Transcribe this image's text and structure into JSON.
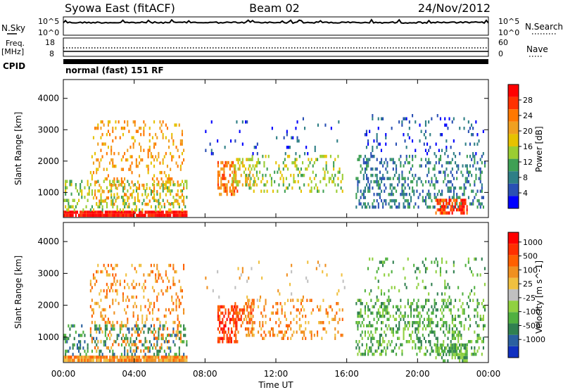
{
  "header": {
    "left_title": "Syowa East (fitACF)",
    "center_title": "Beam 02",
    "right_title": "24/Nov/2012"
  },
  "top_panels": {
    "nsky": {
      "label": "N.Sky",
      "tick_top": "10^5",
      "tick_bottom": "10^0"
    },
    "nsearch": {
      "label": "N.Search",
      "tick_top": "10^5",
      "tick_bottom": "10^0"
    },
    "freq": {
      "label_line1": "Freq.",
      "label_line2": "[MHz]",
      "tick_top": "18",
      "tick_bottom": "8"
    },
    "nave": {
      "label": "Nave",
      "tick_top": "60",
      "tick_bottom": "0"
    },
    "cpid": {
      "label": "CPID",
      "text": "normal (fast) 151 RF"
    }
  },
  "chart_data": [
    {
      "type": "heatmap",
      "name": "power-panel",
      "ylabel": "Slant Range [km]",
      "ylim": [
        200,
        4600
      ],
      "yticks": [
        "1000",
        "2000",
        "3000",
        "4000"
      ],
      "ytick_values": [
        1000,
        2000,
        3000,
        4000
      ],
      "xlim_hours": [
        0,
        24
      ],
      "colorbar": {
        "label": "Power [dB]",
        "ticks": [
          "4",
          "8",
          "12",
          "16",
          "20",
          "24",
          "28"
        ],
        "colors": [
          "#0000ff",
          "#2a50b4",
          "#2f7f86",
          "#3fa055",
          "#9acd32",
          "#e6c200",
          "#f0a020",
          "#ff7800",
          "#ff3200",
          "#ff0000"
        ]
      }
    },
    {
      "type": "heatmap",
      "name": "velocity-panel",
      "ylabel": "Slant Range [km]",
      "ylim": [
        200,
        4600
      ],
      "yticks": [
        "1000",
        "2000",
        "3000",
        "4000"
      ],
      "ytick_values": [
        1000,
        2000,
        3000,
        4000
      ],
      "xlabel": "Time UT",
      "xticks": [
        "00:00",
        "04:00",
        "08:00",
        "12:00",
        "16:00",
        "20:00",
        "00:00"
      ],
      "xtick_hours": [
        0,
        4,
        8,
        12,
        16,
        20,
        24
      ],
      "colorbar": {
        "label": "Velocity [m s^-1]",
        "ticks": [
          "1000",
          "500",
          "100",
          "25",
          "-25",
          "-100",
          "-500",
          "-1000"
        ],
        "colors": [
          "#1030c0",
          "#2a60a0",
          "#308050",
          "#50b040",
          "#90d040",
          "#c0c0c0",
          "#f0c040",
          "#f09020",
          "#ff6000",
          "#ff3000",
          "#ff0000"
        ]
      }
    }
  ],
  "scatter_regions": [
    {
      "t0": 0.0,
      "t1": 7.0,
      "r0": 250,
      "r1": 420,
      "density": 0.95,
      "pcolor": 9,
      "vcolor": 7
    },
    {
      "t0": 0.0,
      "t1": 7.0,
      "r0": 420,
      "r1": 1400,
      "density": 0.25,
      "pcolor": 4,
      "vcolor": 2
    },
    {
      "t0": 1.5,
      "t1": 6.8,
      "r0": 600,
      "r1": 3300,
      "density": 0.18,
      "pcolor": 6,
      "vcolor": 7
    },
    {
      "t0": 8.7,
      "t1": 9.8,
      "r0": 900,
      "r1": 2000,
      "density": 0.55,
      "pcolor": 7,
      "vcolor": 9
    },
    {
      "t0": 9.5,
      "t1": 10.8,
      "r0": 1200,
      "r1": 2100,
      "density": 0.35,
      "pcolor": 5,
      "vcolor": 8
    },
    {
      "t0": 10.3,
      "t1": 15.8,
      "r0": 1000,
      "r1": 2200,
      "density": 0.2,
      "pcolor": 4,
      "vcolor": 7
    },
    {
      "t0": 8.0,
      "t1": 16.0,
      "r0": 2200,
      "r1": 3400,
      "density": 0.04,
      "pcolor": 1,
      "vcolor": 6
    },
    {
      "t0": 16.5,
      "t1": 23.8,
      "r0": 500,
      "r1": 2200,
      "density": 0.3,
      "pcolor": 2,
      "vcolor": 3
    },
    {
      "t0": 17.0,
      "t1": 23.8,
      "r0": 2200,
      "r1": 3500,
      "density": 0.08,
      "pcolor": 1,
      "vcolor": 3
    },
    {
      "t0": 21.0,
      "t1": 22.8,
      "r0": 300,
      "r1": 800,
      "density": 0.6,
      "pcolor": 8,
      "vcolor": 3
    }
  ]
}
